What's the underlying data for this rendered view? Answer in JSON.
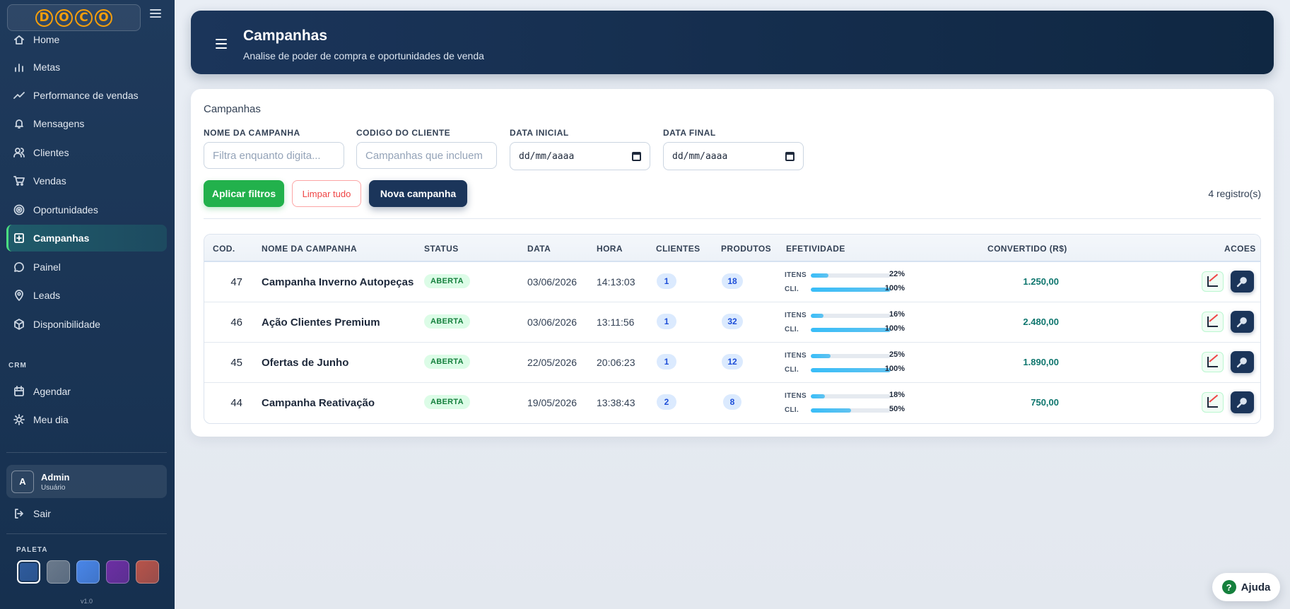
{
  "logo": {
    "letters": [
      "D",
      "O",
      "C",
      "O"
    ]
  },
  "sidebar": {
    "items": [
      {
        "label": "Home",
        "icon": "home-icon"
      },
      {
        "label": "Metas",
        "icon": "bar-chart-icon"
      },
      {
        "label": "Performance de vendas",
        "icon": "trend-icon"
      },
      {
        "label": "Mensagens",
        "icon": "bell-icon"
      },
      {
        "label": "Clientes",
        "icon": "users-icon"
      },
      {
        "label": "Vendas",
        "icon": "cart-icon"
      },
      {
        "label": "Oportunidades",
        "icon": "target-icon"
      },
      {
        "label": "Campanhas",
        "icon": "campaign-icon",
        "active": true
      },
      {
        "label": "Painel",
        "icon": "chat-icon"
      },
      {
        "label": "Leads",
        "icon": "pin-icon"
      },
      {
        "label": "Disponibilidade",
        "icon": "box-icon"
      }
    ],
    "crm_section": "CRM",
    "crm_items": [
      {
        "label": "Agendar",
        "icon": "calendar-icon"
      },
      {
        "label": "Meu dia",
        "icon": "sun-icon"
      }
    ],
    "user": {
      "initial": "A",
      "name": "Admin",
      "role": "Usuário"
    },
    "logout_label": "Sair",
    "palette_label": "PALETA",
    "palette": [
      "#2f5c9e",
      "#6b7a8c",
      "#4a86e8",
      "#6d2fa3",
      "#b8544a"
    ],
    "version": "v1.0"
  },
  "header": {
    "title": "Campanhas",
    "subtitle": "Analise de poder de compra e oportunidades de venda"
  },
  "filters": {
    "card_title": "Campanhas",
    "name_label": "NOME DA CAMPANHA",
    "name_placeholder": "Filtra enquanto digita...",
    "client_label": "CODIGO DO CLIENTE",
    "client_placeholder": "Campanhas que incluem",
    "start_label": "DATA INICIAL",
    "start_value": "dd/mm/aaaa",
    "end_label": "DATA FINAL",
    "end_value": "dd/mm/aaaa",
    "apply_label": "Aplicar filtros",
    "clear_label": "Limpar tudo",
    "new_label": "Nova campanha",
    "records": "4 registro(s)"
  },
  "table": {
    "columns": {
      "code": "COD.",
      "name": "NOME DA CAMPANHA",
      "status": "STATUS",
      "date": "DATA",
      "time": "HORA",
      "clients": "CLIENTES",
      "products": "PRODUTOS",
      "effectiveness": "EFETIVIDADE",
      "converted": "CONVERTIDO (R$)",
      "actions": "ACOES"
    },
    "items_label": "ITENS",
    "clients_label": "CLI.",
    "rows": [
      {
        "code": "47",
        "name": "Campanha Inverno Autopeças",
        "status": "ABERTA",
        "date": "03/06/2026",
        "time": "14:13:03",
        "clients": "1",
        "products": "18",
        "items_pct": "22%",
        "items_frac": 0.22,
        "cli_pct": "100%",
        "cli_frac": 1.0,
        "converted": "1.250,00"
      },
      {
        "code": "46",
        "name": "Ação Clientes Premium",
        "status": "ABERTA",
        "date": "03/06/2026",
        "time": "13:11:56",
        "clients": "1",
        "products": "32",
        "items_pct": "16%",
        "items_frac": 0.16,
        "cli_pct": "100%",
        "cli_frac": 1.0,
        "converted": "2.480,00"
      },
      {
        "code": "45",
        "name": "Ofertas de Junho",
        "status": "ABERTA",
        "date": "22/05/2026",
        "time": "20:06:23",
        "clients": "1",
        "products": "12",
        "items_pct": "25%",
        "items_frac": 0.25,
        "cli_pct": "100%",
        "cli_frac": 1.0,
        "converted": "1.890,00"
      },
      {
        "code": "44",
        "name": "Campanha Reativação",
        "status": "ABERTA",
        "date": "19/05/2026",
        "time": "13:38:43",
        "clients": "2",
        "products": "8",
        "items_pct": "18%",
        "items_frac": 0.18,
        "cli_pct": "50%",
        "cli_frac": 0.5,
        "converted": "750,00"
      }
    ]
  },
  "help": {
    "icon": "?",
    "label": "Ajuda"
  }
}
